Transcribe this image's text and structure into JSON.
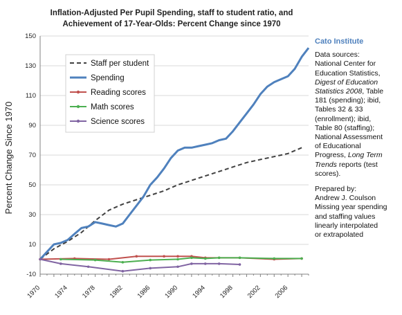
{
  "chart_data": {
    "type": "line",
    "title_lines": [
      "Inflation-Adjusted Per Pupil Spending, staff to student ratio, and",
      "Achievement of 17-Year-Olds:  Percent Change since 1970"
    ],
    "ylabel": "Percent Change Since 1970",
    "xlabel": "",
    "ylim": [
      -10,
      150
    ],
    "xlim": [
      1970,
      2009
    ],
    "yticks": [
      -10,
      10,
      30,
      50,
      70,
      90,
      110,
      130,
      150
    ],
    "xticks": [
      "1970",
      "1974",
      "1978",
      "1982",
      "1986",
      "1990",
      "1994",
      "1998",
      "2002",
      "2006"
    ],
    "legend_position": "upper-left",
    "series": [
      {
        "name": "Staff per student",
        "color": "#404040",
        "style": "dashed",
        "x": [
          1970,
          1972,
          1974,
          1976,
          1978,
          1980,
          1982,
          1984,
          1986,
          1988,
          1990,
          1992,
          1994,
          1996,
          1998,
          2000,
          2002,
          2004,
          2006,
          2008
        ],
        "y": [
          0,
          7,
          12,
          18,
          26,
          33,
          37,
          40,
          43,
          46,
          50,
          53,
          56,
          59,
          62,
          65,
          67,
          69,
          71,
          75
        ]
      },
      {
        "name": "Spending",
        "color": "#4f81bd",
        "style": "solid",
        "x": [
          1970,
          1971,
          1972,
          1973,
          1974,
          1975,
          1976,
          1977,
          1978,
          1979,
          1980,
          1981,
          1982,
          1983,
          1984,
          1985,
          1986,
          1987,
          1988,
          1989,
          1990,
          1991,
          1992,
          1993,
          1994,
          1995,
          1996,
          1997,
          1998,
          1999,
          2000,
          2001,
          2002,
          2003,
          2004,
          2005,
          2006,
          2007,
          2008,
          2009
        ],
        "y": [
          0,
          5,
          10,
          11,
          13,
          17,
          21,
          22,
          25,
          24,
          23,
          22,
          24,
          30,
          36,
          42,
          50,
          55,
          61,
          68,
          73,
          75,
          75,
          76,
          77,
          78,
          80,
          81,
          86,
          92,
          98,
          104,
          111,
          116,
          119,
          121,
          123,
          128,
          136,
          142
        ]
      },
      {
        "name": "Reading scores",
        "color": "#c0504d",
        "style": "solid-marker",
        "x": [
          1970,
          1975,
          1980,
          1984,
          1988,
          1990,
          1992,
          1994,
          1996,
          1999,
          2004,
          2008
        ],
        "y": [
          0,
          0.5,
          0,
          2,
          2,
          2,
          2,
          1,
          1,
          1,
          0,
          0.5
        ]
      },
      {
        "name": "Math scores",
        "color": "#4caf50",
        "style": "solid-marker",
        "x": [
          1973,
          1978,
          1982,
          1986,
          1990,
          1992,
          1994,
          1996,
          1999,
          2004,
          2008
        ],
        "y": [
          0,
          -0.5,
          -2,
          -0.5,
          0,
          1,
          0.5,
          1,
          1,
          0.5,
          0.5
        ]
      },
      {
        "name": "Science scores",
        "color": "#8064a2",
        "style": "solid-marker",
        "x": [
          1970,
          1973,
          1977,
          1982,
          1986,
          1990,
          1992,
          1994,
          1996,
          1999
        ],
        "y": [
          0,
          -3,
          -5,
          -8,
          -6,
          -5,
          -3,
          -3,
          -3,
          -3.5
        ]
      }
    ]
  },
  "side_panel": {
    "org": "Cato Institute",
    "line1": "Data sources:",
    "line2": "National Center for",
    "line3": "Education Statistics,",
    "line4": "Digest of Education",
    "line5": "Statistics 2008",
    "line5b": ", Table",
    "line6": "181 (spending); ibid,",
    "line7": "Tables 32 & 33",
    "line8": "(enrollment); ibid,",
    "line9": "Table 80 (staffing);",
    "line10": "National Assessment",
    "line11": "of Educational",
    "line12a": "Progress, ",
    "line12b": "Long Term",
    "line13a": "Trends",
    "line13b": " reports (test",
    "line14": "scores).",
    "prepared1": "Prepared by:",
    "prepared2": "Andrew J. Coulson",
    "note1": "Missing year spending",
    "note2": "and staffing values",
    "note3": "linearly interpolated",
    "note4": "or extrapolated"
  }
}
